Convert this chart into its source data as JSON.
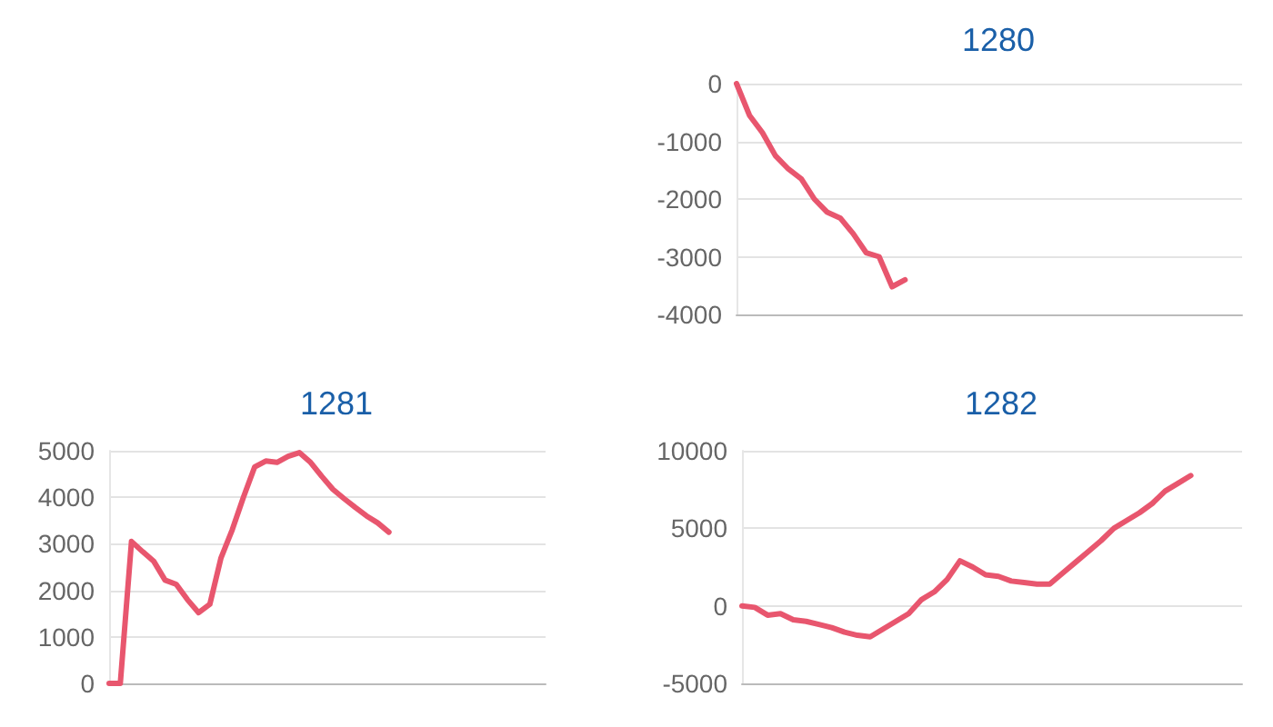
{
  "chart_data": [
    {
      "type": "line",
      "title": "1280",
      "categories": [
        null,
        null,
        null,
        null,
        null,
        null,
        null,
        null,
        null,
        null,
        null,
        null,
        null,
        null,
        null,
        null,
        null,
        null,
        null,
        null,
        null,
        null,
        null,
        null,
        null,
        null,
        null,
        null,
        null,
        null,
        null,
        null,
        null,
        null,
        null,
        null,
        null,
        null,
        null,
        null
      ],
      "series": [
        {
          "color": "#e8566e",
          "values": [
            0,
            -550,
            -850,
            -1250,
            -1480,
            -1650,
            -2000,
            -2230,
            -2330,
            -2600,
            -2930,
            -3000,
            -3520,
            -3400,
            null,
            null,
            null,
            null,
            null,
            null,
            null,
            null,
            null,
            null,
            null,
            null,
            null,
            null,
            null,
            null,
            null,
            null,
            null,
            null,
            null,
            null,
            null,
            null,
            null,
            null
          ]
        }
      ],
      "ylim": [
        -4000,
        0
      ],
      "yticks": [
        -4000,
        -3000,
        -2000,
        -1000,
        0
      ],
      "grid": "y",
      "tick_labels": "y"
    },
    {
      "type": "line",
      "title": "1281",
      "categories": [
        null,
        null,
        null,
        null,
        null,
        null,
        null,
        null,
        null,
        null,
        null,
        null,
        null,
        null,
        null,
        null,
        null,
        null,
        null,
        null,
        null,
        null,
        null,
        null,
        null,
        null,
        null,
        null,
        null,
        null,
        null,
        null,
        null,
        null,
        null,
        null,
        null,
        null,
        null,
        null
      ],
      "series": [
        {
          "color": "#e8566e",
          "values": [
            0,
            0,
            3050,
            2830,
            2620,
            2220,
            2130,
            1800,
            1520,
            1700,
            2700,
            3300,
            4000,
            4650,
            4780,
            4750,
            4880,
            4960,
            4750,
            4450,
            4170,
            3970,
            3780,
            3600,
            3450,
            3250,
            null,
            null,
            null,
            null,
            null,
            null,
            null,
            null,
            null,
            null,
            null,
            null,
            null,
            null
          ]
        }
      ],
      "ylim": [
        0,
        5000
      ],
      "yticks": [
        0,
        1000,
        2000,
        3000,
        4000,
        5000
      ],
      "grid": "y",
      "tick_labels": "y"
    },
    {
      "type": "line",
      "title": "1282",
      "categories": [
        null,
        null,
        null,
        null,
        null,
        null,
        null,
        null,
        null,
        null,
        null,
        null,
        null,
        null,
        null,
        null,
        null,
        null,
        null,
        null,
        null,
        null,
        null,
        null,
        null,
        null,
        null,
        null,
        null,
        null,
        null,
        null,
        null,
        null,
        null,
        null,
        null,
        null,
        null,
        null
      ],
      "series": [
        {
          "color": "#e8566e",
          "values": [
            0,
            -100,
            -600,
            -500,
            -900,
            -1000,
            -1200,
            -1400,
            -1700,
            -1900,
            -2000,
            -1500,
            -1000,
            -500,
            400,
            900,
            1700,
            2900,
            2500,
            2000,
            1900,
            1600,
            1500,
            1400,
            1400,
            2100,
            2800,
            3500,
            4200,
            5000,
            5500,
            6000,
            6600,
            7400,
            7900,
            8400,
            null,
            null,
            null,
            null
          ]
        }
      ],
      "ylim": [
        -5000,
        10000
      ],
      "yticks": [
        -5000,
        0,
        5000,
        10000
      ],
      "grid": "y",
      "tick_labels": "y"
    }
  ]
}
